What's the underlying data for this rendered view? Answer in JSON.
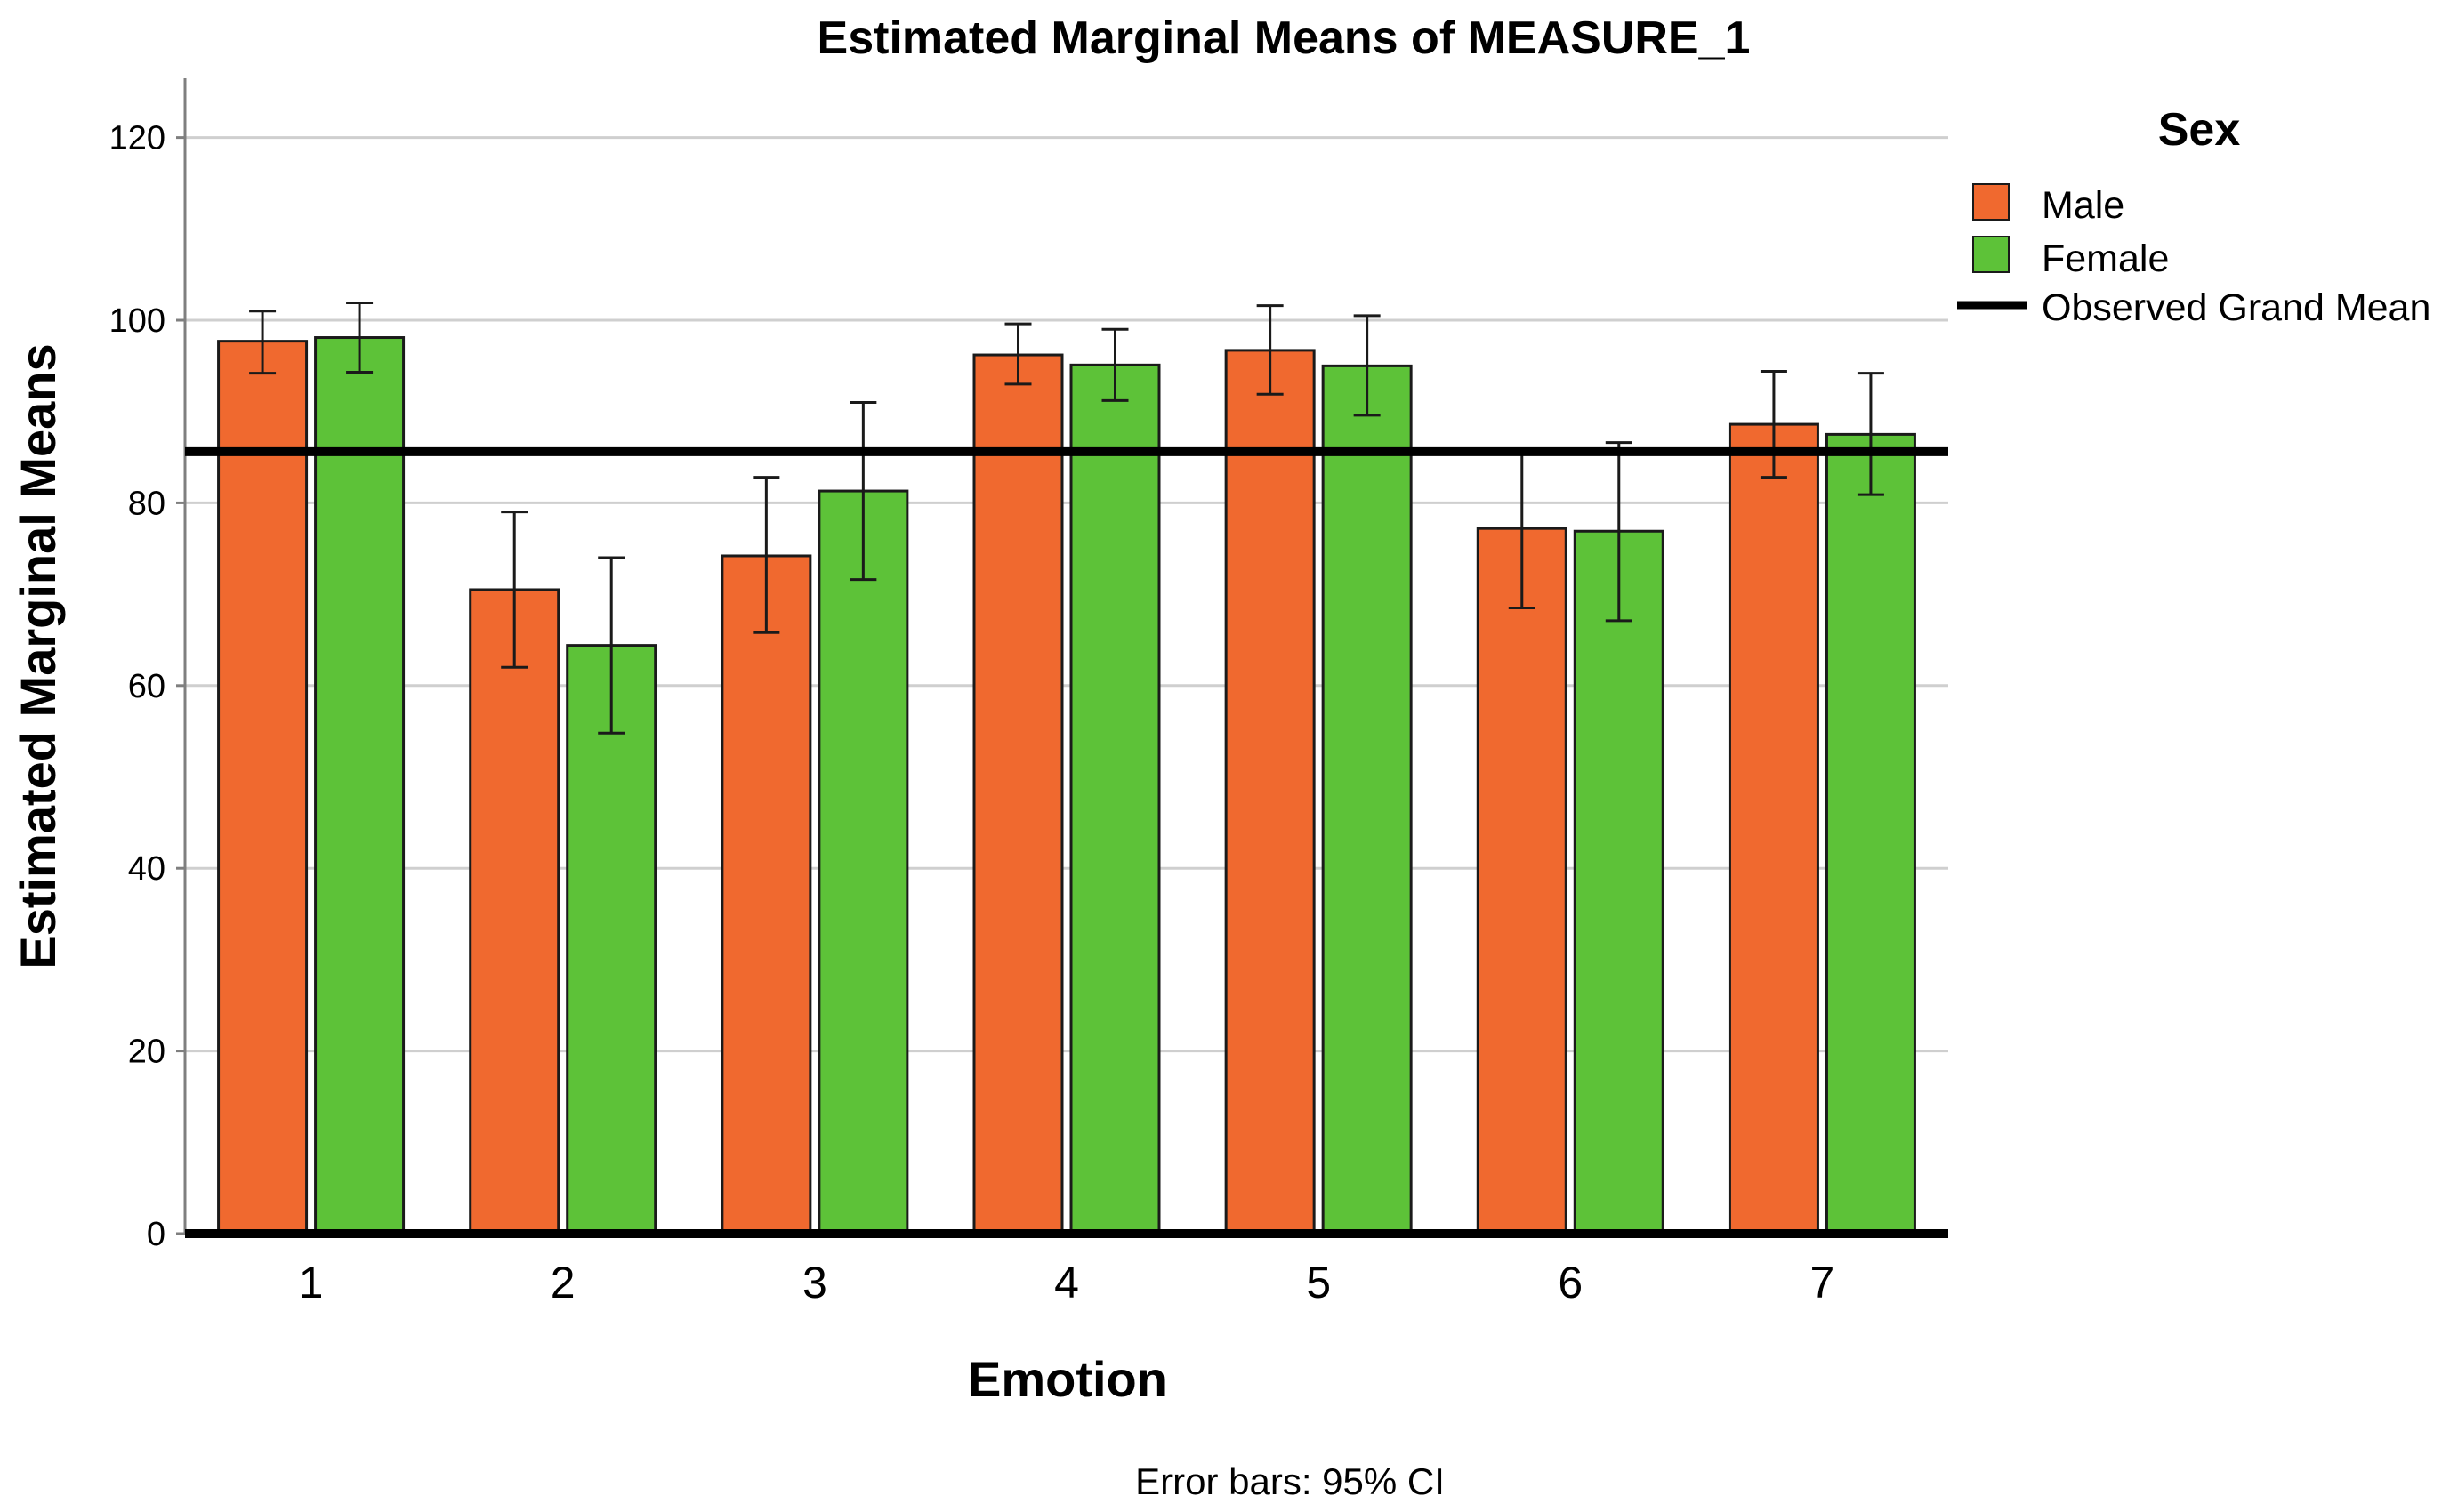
{
  "chart_data": {
    "type": "bar",
    "title": "Estimated Marginal Means of MEASURE_1",
    "xlabel": "Emotion",
    "ylabel": "Estimated Marginal Means",
    "ylim": [
      0,
      126
    ],
    "yticks": [
      0,
      20,
      40,
      60,
      80,
      100,
      120
    ],
    "categories": [
      "1",
      "2",
      "3",
      "4",
      "5",
      "6",
      "7"
    ],
    "grid": "horizontal",
    "legend": {
      "title": "Sex",
      "position": "top-right",
      "grand_mean_label": "Observed Grand Mean"
    },
    "series": [
      {
        "name": "Male",
        "color": "#F0692F",
        "values": [
          97.7,
          70.5,
          74.2,
          96.2,
          96.7,
          77.2,
          88.6
        ],
        "ci_low": [
          94.2,
          62.0,
          65.8,
          93.0,
          91.9,
          68.5,
          82.8
        ],
        "ci_high": [
          101.0,
          79.0,
          82.8,
          99.6,
          101.6,
          85.6,
          94.4
        ]
      },
      {
        "name": "Female",
        "color": "#5DC238",
        "values": [
          98.1,
          64.4,
          81.3,
          95.1,
          95.0,
          76.9,
          87.5
        ],
        "ci_low": [
          94.3,
          54.8,
          71.6,
          91.2,
          89.6,
          67.1,
          80.9
        ],
        "ci_high": [
          101.9,
          74.0,
          91.0,
          99.0,
          100.5,
          86.6,
          94.2
        ]
      }
    ],
    "grand_mean": 85.6,
    "footnote": "Error bars: 95% CI"
  }
}
